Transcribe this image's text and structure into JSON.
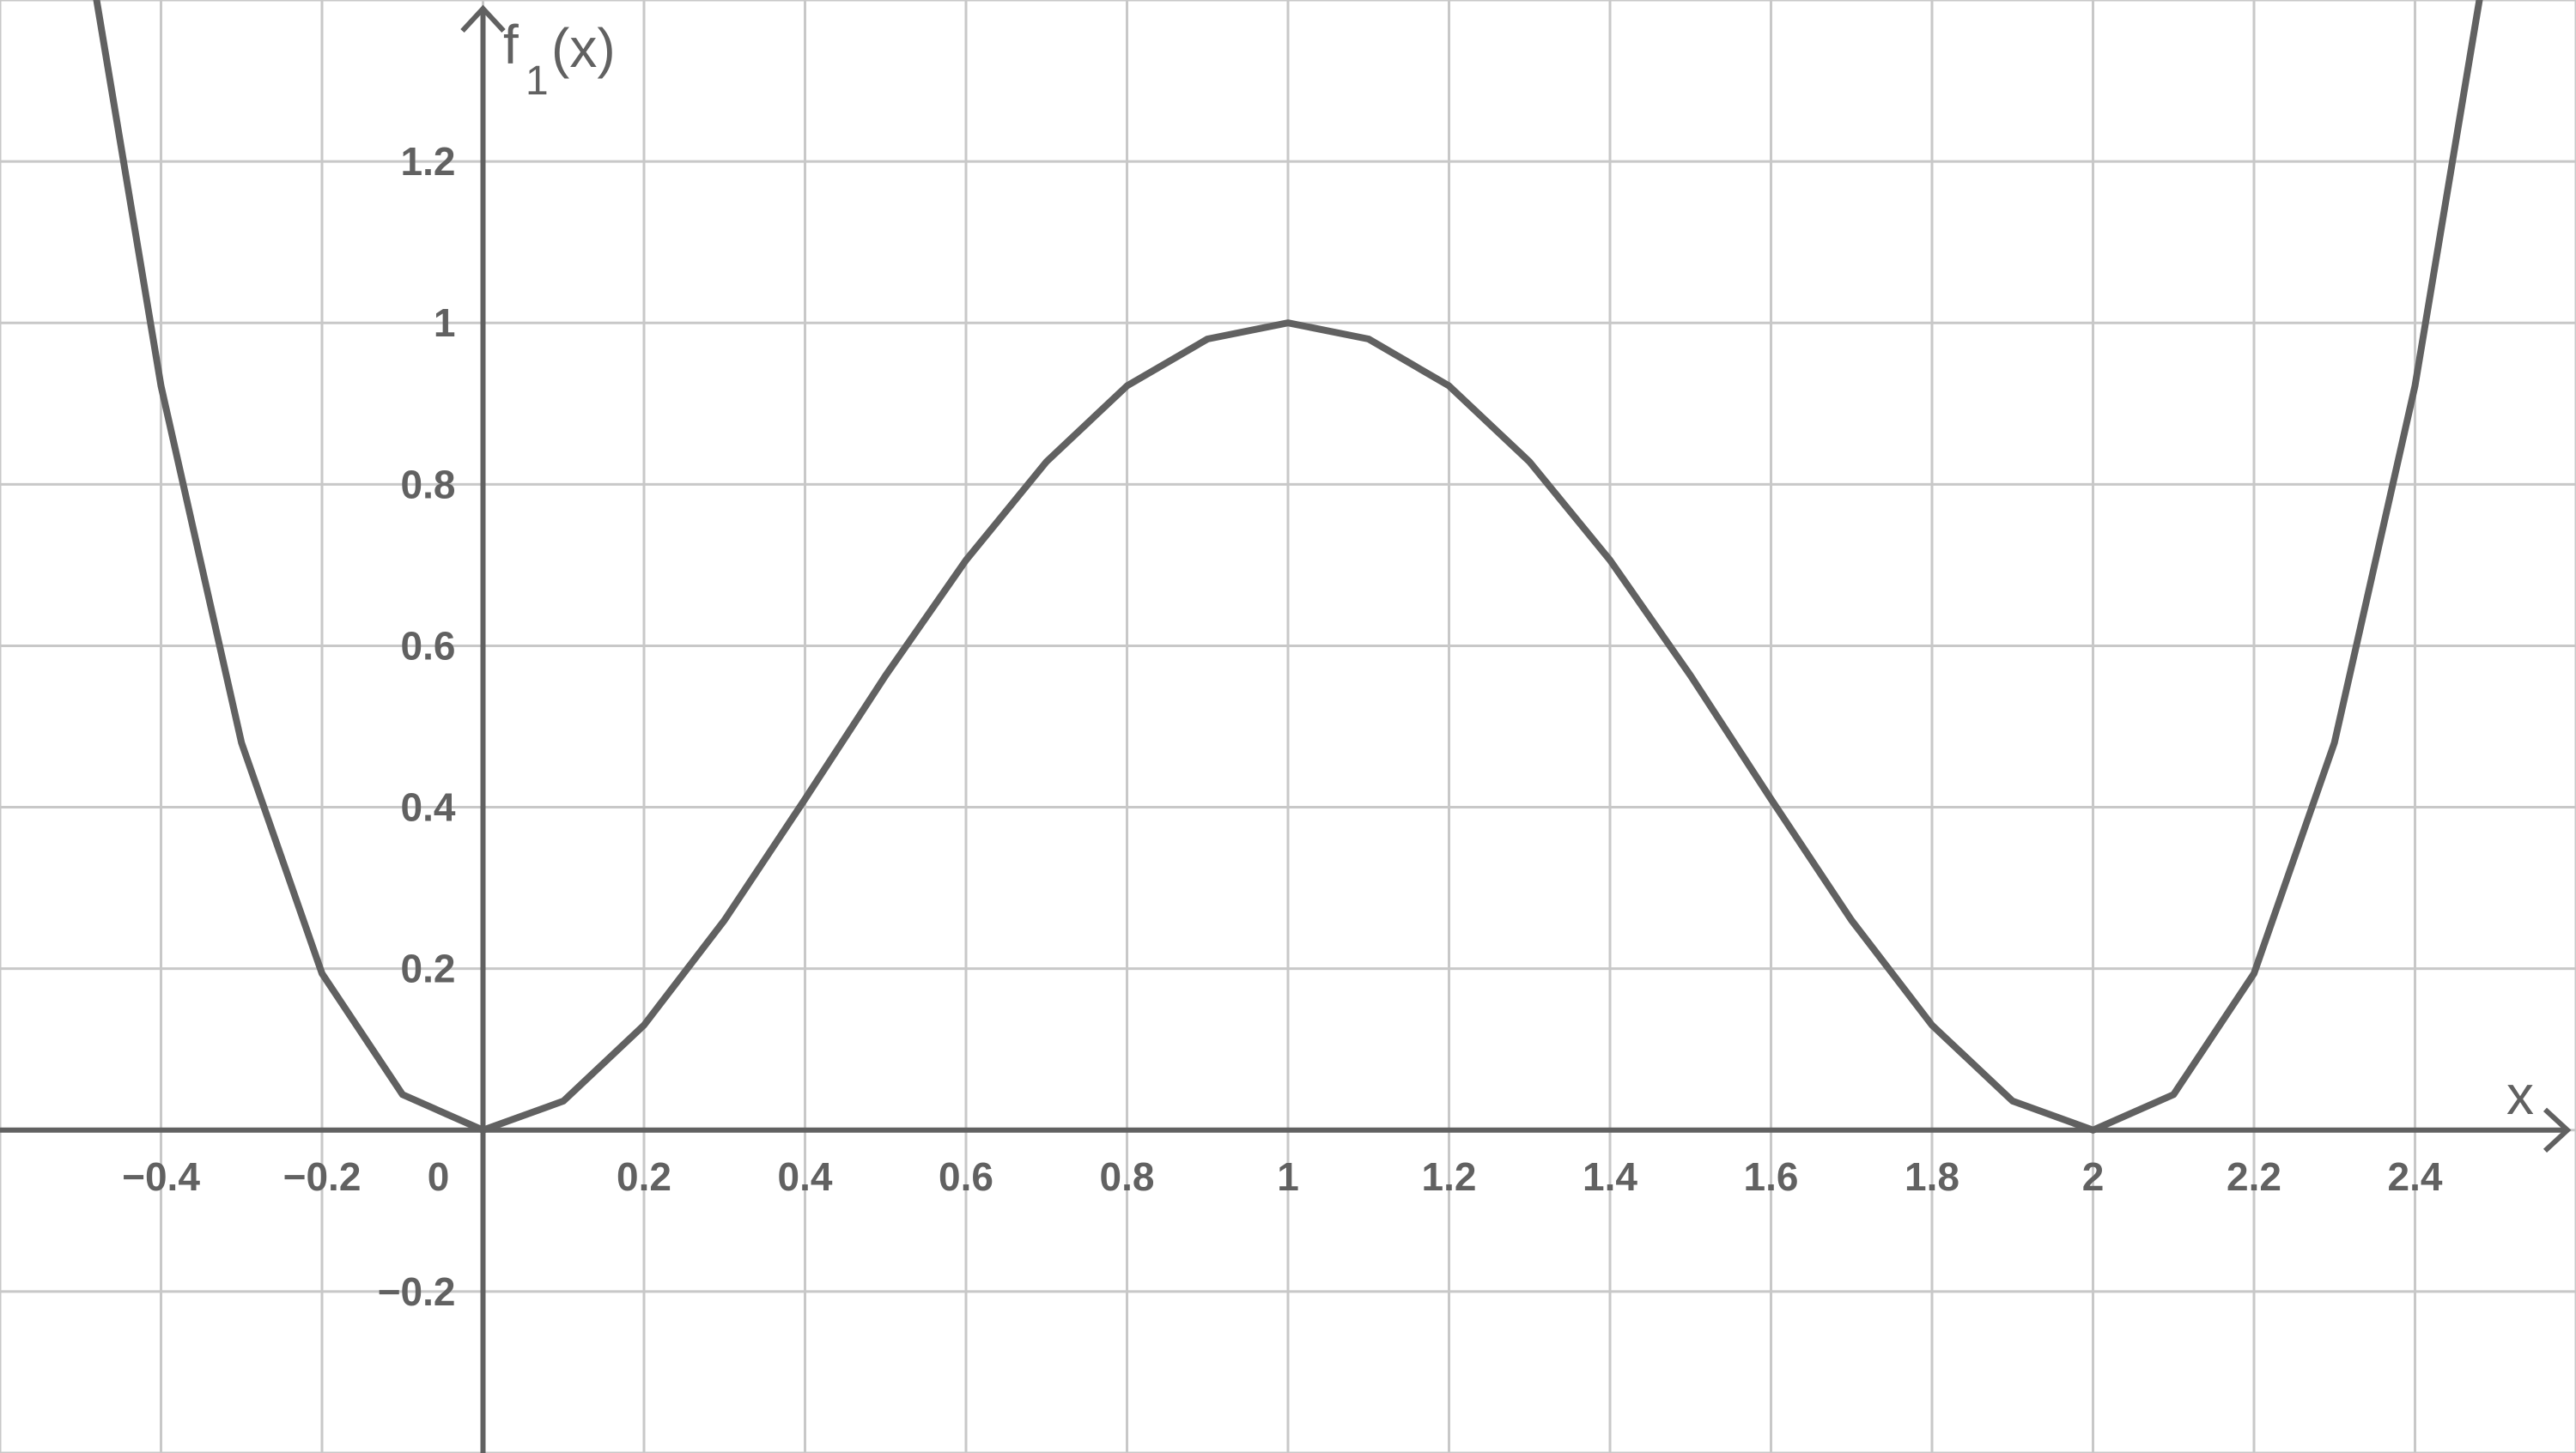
{
  "chart_data": {
    "type": "line",
    "x_axis_label": "x",
    "y_axis_label": {
      "main": "f",
      "sub": "1",
      "arg": "(x)"
    },
    "xlim": [
      -0.6,
      2.6
    ],
    "ylim": [
      -0.4,
      1.4
    ],
    "x_ticks": [
      -0.4,
      -0.2,
      0,
      0.2,
      0.4,
      0.6,
      0.8,
      1,
      1.2,
      1.4,
      1.6,
      1.8,
      2,
      2.2,
      2.4
    ],
    "x_tick_labels": [
      "−0.4",
      "−0.2",
      "0",
      "0.2",
      "0.4",
      "0.6",
      "0.8",
      "1",
      "1.2",
      "1.4",
      "1.6",
      "1.8",
      "2",
      "2.2",
      "2.4"
    ],
    "y_ticks": [
      -0.2,
      0.2,
      0.4,
      0.6,
      0.8,
      1,
      1.2
    ],
    "y_tick_labels": [
      "−0.2",
      "0.2",
      "0.4",
      "0.6",
      "0.8",
      "1",
      "1.2"
    ],
    "grid": true,
    "colors": {
      "curve": "#616161",
      "axis": "#616161",
      "grid": "#c8c8c8"
    },
    "series": [
      {
        "x": [
          -0.48,
          -0.4,
          -0.3,
          -0.2,
          -0.1,
          0,
          0.1,
          0.2,
          0.3,
          0.4,
          0.5,
          0.6,
          0.7,
          0.8,
          0.9,
          1,
          1.1,
          1.2,
          1.3,
          1.4,
          1.5,
          1.6,
          1.7,
          1.8,
          1.9,
          2,
          2.1,
          2.2,
          2.3,
          2.4,
          2.48
        ],
        "y": [
          1.4,
          0.922,
          0.48,
          0.194,
          0.044,
          0,
          0.036,
          0.13,
          0.26,
          0.41,
          0.563,
          0.706,
          0.828,
          0.922,
          0.98,
          1,
          0.98,
          0.922,
          0.828,
          0.706,
          0.563,
          0.41,
          0.26,
          0.13,
          0.036,
          0,
          0.044,
          0.194,
          0.48,
          0.922,
          1.4
        ]
      }
    ]
  }
}
